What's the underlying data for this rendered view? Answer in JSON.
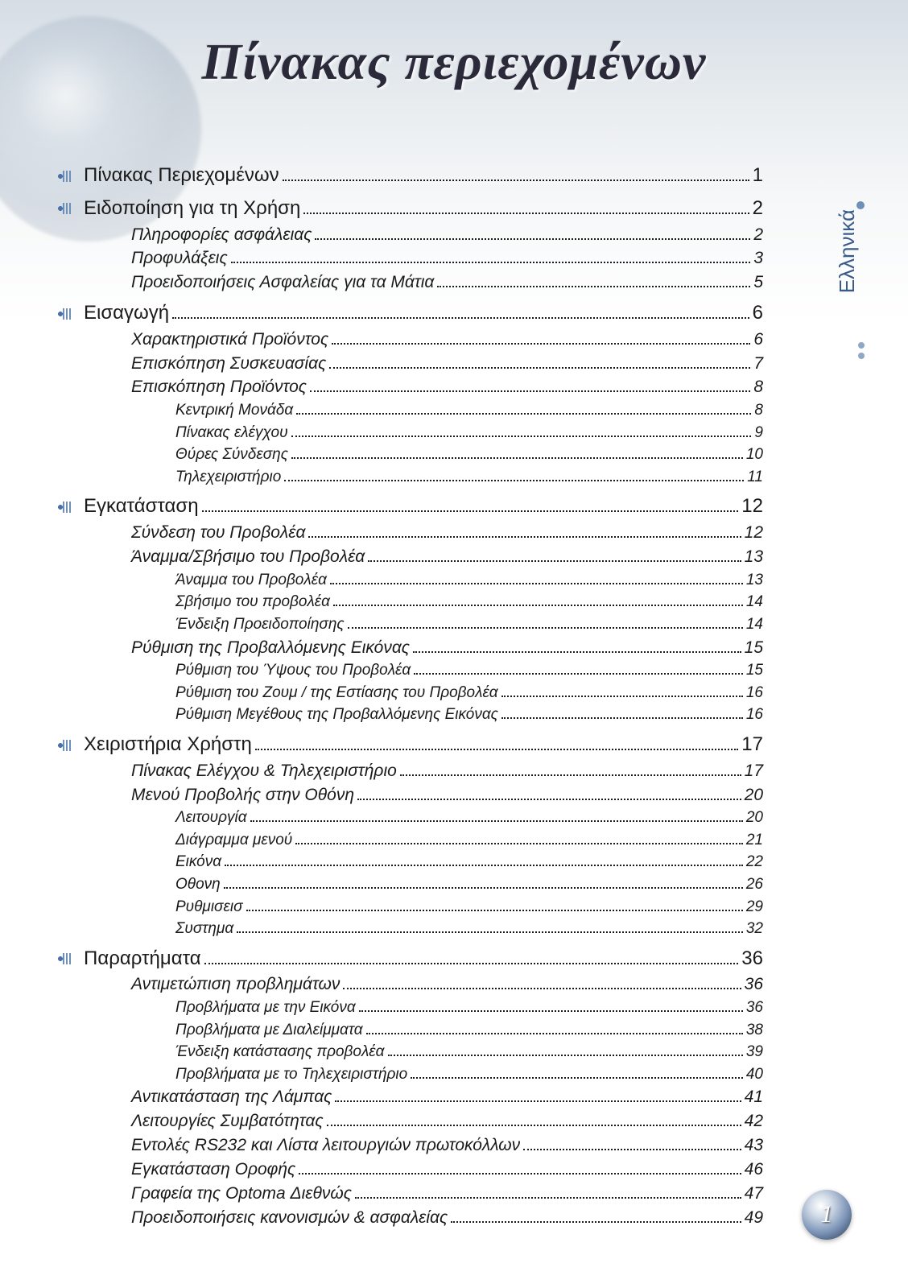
{
  "title": "Πίνακας περιεχομένων",
  "language_tab": "Ελληνικά",
  "page_number": "1",
  "colors": {
    "title_color": "#2a2a3a",
    "text_color": "#1a1a1a",
    "accent_blue": "#4a72a8",
    "dot_blue": "#8fa8c5",
    "bg_gradient_top": "#d5dde5",
    "bg_gradient_bottom": "#ffffff"
  },
  "typography": {
    "title_font": "Georgia serif italic bold",
    "title_size_pt": 48,
    "level0_size_pt": 18,
    "level1_size_pt": 16,
    "level2_size_pt": 14
  },
  "toc": [
    {
      "level": 0,
      "label": "Πίνακας Περιεχομένων",
      "page": "1"
    },
    {
      "level": 0,
      "label": "Ειδοποίηση για τη Χρήση",
      "page": "2"
    },
    {
      "level": 1,
      "label": "Πληροφορίες ασφάλειας",
      "page": "2"
    },
    {
      "level": 1,
      "label": "Προφυλάξεις",
      "page": "3"
    },
    {
      "level": 1,
      "label": "Προειδοποιήσεις Ασφαλείας για τα Μάτια",
      "page": "5"
    },
    {
      "level": 0,
      "label": "Εισαγωγή",
      "page": "6"
    },
    {
      "level": 1,
      "label": "Χαρακτηριστικά Προϊόντος",
      "page": "6"
    },
    {
      "level": 1,
      "label": "Επισκόπηση Συσκευασίας",
      "page": "7"
    },
    {
      "level": 1,
      "label": "Επισκόπηση Προϊόντος",
      "page": "8"
    },
    {
      "level": 2,
      "label": "Κεντρική Μονάδα",
      "page": "8"
    },
    {
      "level": 2,
      "label": "Πίνακας ελέγχου",
      "page": "9"
    },
    {
      "level": 2,
      "label": "Θύρες Σύνδεσης",
      "page": "10"
    },
    {
      "level": 2,
      "label": "Τηλεχειριστήριο",
      "page": "11"
    },
    {
      "level": 0,
      "label": "Εγκατάσταση",
      "page": "12"
    },
    {
      "level": 1,
      "label": "Σύνδεση του Προβολέα",
      "page": "12"
    },
    {
      "level": 1,
      "label": "Άναμμα/Σβήσιμο του Προβολέα",
      "page": "13"
    },
    {
      "level": 2,
      "label": "Άναμμα του Προβολέα",
      "page": "13"
    },
    {
      "level": 2,
      "label": "Σβήσιμο του προβολέα",
      "page": "14"
    },
    {
      "level": 2,
      "label": "Ένδειξη Προειδοποίησης",
      "page": "14"
    },
    {
      "level": 1,
      "label": "Ρύθμιση της Προβαλλόμενης Εικόνας",
      "page": "15"
    },
    {
      "level": 2,
      "label": "Ρύθμιση του Ύψους του Προβολέα",
      "page": "15"
    },
    {
      "level": 2,
      "label": "Ρύθμιση του Ζουμ / της Εστίασης του Προβολέα",
      "page": "16"
    },
    {
      "level": 2,
      "label": "Ρύθμιση Μεγέθους της Προβαλλόμενης Εικόνας",
      "page": "16"
    },
    {
      "level": 0,
      "label": "Χειριστήρια Χρήστη",
      "page": "17"
    },
    {
      "level": 1,
      "label": "Πίνακας Ελέγχου & Τηλεχειριστήριο",
      "page": "17"
    },
    {
      "level": 1,
      "label": "Μενού Προβολής στην Οθόνη",
      "page": "20"
    },
    {
      "level": 2,
      "label": "Λειτουργία",
      "page": "20"
    },
    {
      "level": 2,
      "label": "Διάγραμμα μενού",
      "page": "21"
    },
    {
      "level": 2,
      "label": "Εικόνα",
      "page": "22"
    },
    {
      "level": 2,
      "label": "Οθονη",
      "page": "26"
    },
    {
      "level": 2,
      "label": "Ρυθμισεισ",
      "page": "29"
    },
    {
      "level": 2,
      "label": "Συστημα",
      "page": "32"
    },
    {
      "level": 0,
      "label": "Παραρτήματα",
      "page": "36"
    },
    {
      "level": 1,
      "label": "Αντιμετώπιση προβλημάτων",
      "page": "36"
    },
    {
      "level": 2,
      "label": "Προβλήματα με την Εικόνα",
      "page": "36"
    },
    {
      "level": 2,
      "label": "Προβλήματα με Διαλείμματα",
      "page": "38"
    },
    {
      "level": 2,
      "label": "Ένδειξη κατάστασης προβολέα",
      "page": "39"
    },
    {
      "level": 2,
      "label": "Προβλήματα με το Τηλεχειριστήριο",
      "page": "40"
    },
    {
      "level": 1,
      "label": "Αντικατάσταση της Λάμπας",
      "page": "41"
    },
    {
      "level": 1,
      "label": "Λειτουργίες Συμβατότητας",
      "page": "42"
    },
    {
      "level": 1,
      "label": "Εντολές RS232 και Λίστα λειτουργιών πρωτοκόλλων",
      "page": "43"
    },
    {
      "level": 1,
      "label": "Εγκατάσταση Οροφής",
      "page": "46"
    },
    {
      "level": 1,
      "label": "Γραφεία της Optoma Διεθνώς",
      "page": "47"
    },
    {
      "level": 1,
      "label": "Προειδοποιήσεις κανονισμών & ασφαλείας",
      "page": "49"
    }
  ]
}
